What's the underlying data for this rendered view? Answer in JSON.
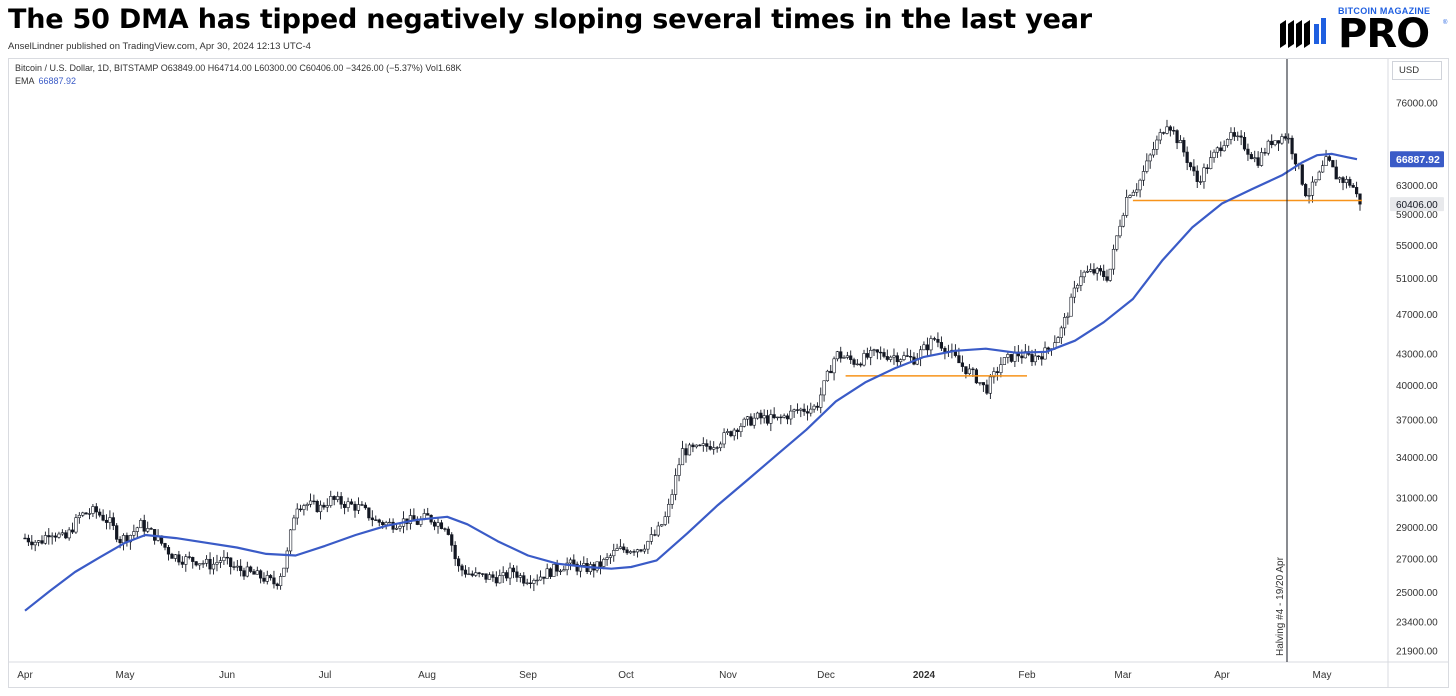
{
  "header": {
    "title": "The 50 DMA has tipped negatively sloping several times in the last year",
    "byline": "AnselLindner published on TradingView.com, Apr 30, 2024 12:13 UTC-4"
  },
  "logo": {
    "top_text": "BITCOIN MAGAZINE",
    "main_text": "PRO",
    "reg_mark": "®"
  },
  "legend": {
    "symbol_line": "Bitcoin / U.S. Dollar, 1D, BITSTAMP  O63849.00  H64714.00  L60300.00  C60406.00  −3426.00 (−5.37%)  Vol1.68K",
    "ema_label": "EMA",
    "ema_value": "66887.92"
  },
  "currency": "USD",
  "colors": {
    "ema_line": "#3a5bc7",
    "support_line": "#f7931a",
    "candle": "#131722",
    "halving_line": "#131722",
    "ema_badge_bg": "#3a5bc7",
    "price_badge_bg": "#e8e9ec"
  },
  "chart_data": {
    "type": "candlestick",
    "scale": "log",
    "ylim": [
      21000,
      80000
    ],
    "y_ticks": [
      "76000.00",
      "63000.00",
      "59000.00",
      "55000.00",
      "51000.00",
      "47000.00",
      "43000.00",
      "40000.00",
      "37000.00",
      "34000.00",
      "31000.00",
      "29000.00",
      "27000.00",
      "25000.00",
      "23400.00",
      "21900.00"
    ],
    "y_tick_values": [
      76000,
      63000,
      59000,
      55000,
      51000,
      47000,
      43000,
      40000,
      37000,
      34000,
      31000,
      29000,
      27000,
      25000,
      23400,
      21900
    ],
    "x_ticks": [
      {
        "label": "Apr",
        "month": 0,
        "bold": false
      },
      {
        "label": "May",
        "month": 1,
        "bold": false
      },
      {
        "label": "Jun",
        "month": 2,
        "bold": false
      },
      {
        "label": "Jul",
        "month": 3,
        "bold": false
      },
      {
        "label": "Aug",
        "month": 4,
        "bold": false
      },
      {
        "label": "Sep",
        "month": 5,
        "bold": false
      },
      {
        "label": "Oct",
        "month": 6,
        "bold": false
      },
      {
        "label": "Nov",
        "month": 7,
        "bold": false
      },
      {
        "label": "Dec",
        "month": 8,
        "bold": false
      },
      {
        "label": "2024",
        "month": 9,
        "bold": true
      },
      {
        "label": "Feb",
        "month": 10,
        "bold": false
      },
      {
        "label": "Mar",
        "month": 11,
        "bold": false
      },
      {
        "label": "Apr",
        "month": 12,
        "bold": false
      },
      {
        "label": "May",
        "month": 13,
        "bold": false
      }
    ],
    "price_path": [
      [
        0.0,
        28300
      ],
      [
        0.15,
        28000
      ],
      [
        0.25,
        28800
      ],
      [
        0.4,
        28200
      ],
      [
        0.55,
        29800
      ],
      [
        0.7,
        30100
      ],
      [
        0.85,
        29300
      ],
      [
        0.95,
        28200
      ],
      [
        1.05,
        28500
      ],
      [
        1.15,
        29200
      ],
      [
        1.3,
        28400
      ],
      [
        1.45,
        27300
      ],
      [
        1.55,
        27000
      ],
      [
        1.7,
        26900
      ],
      [
        1.85,
        26600
      ],
      [
        1.95,
        27000
      ],
      [
        2.05,
        26500
      ],
      [
        2.2,
        26200
      ],
      [
        2.35,
        25900
      ],
      [
        2.5,
        25500
      ],
      [
        2.6,
        26800
      ],
      [
        2.7,
        30500
      ],
      [
        2.8,
        30600
      ],
      [
        2.95,
        30300
      ],
      [
        3.05,
        30900
      ],
      [
        3.2,
        30600
      ],
      [
        3.35,
        30300
      ],
      [
        3.5,
        29400
      ],
      [
        3.65,
        29200
      ],
      [
        3.8,
        29500
      ],
      [
        3.9,
        29300
      ],
      [
        4.0,
        29700
      ],
      [
        4.1,
        29300
      ],
      [
        4.2,
        29100
      ],
      [
        4.3,
        26500
      ],
      [
        4.45,
        26000
      ],
      [
        4.6,
        25900
      ],
      [
        4.75,
        25850
      ],
      [
        4.85,
        26300
      ],
      [
        4.95,
        25800
      ],
      [
        5.1,
        25900
      ],
      [
        5.25,
        26300
      ],
      [
        5.4,
        26700
      ],
      [
        5.55,
        26400
      ],
      [
        5.7,
        26500
      ],
      [
        5.8,
        26900
      ],
      [
        5.9,
        27500
      ],
      [
        6.0,
        27600
      ],
      [
        6.15,
        27700
      ],
      [
        6.3,
        28600
      ],
      [
        6.4,
        29800
      ],
      [
        6.55,
        34500
      ],
      [
        6.7,
        34600
      ],
      [
        6.9,
        35200
      ],
      [
        7.1,
        36500
      ],
      [
        7.3,
        37200
      ],
      [
        7.5,
        37000
      ],
      [
        7.7,
        37800
      ],
      [
        7.9,
        38100
      ],
      [
        8.0,
        40500
      ],
      [
        8.1,
        43000
      ],
      [
        8.3,
        42200
      ],
      [
        8.5,
        43000
      ],
      [
        8.7,
        42800
      ],
      [
        8.9,
        42500
      ],
      [
        9.1,
        44500
      ],
      [
        9.2,
        43700
      ],
      [
        9.35,
        42000
      ],
      [
        9.5,
        40800
      ],
      [
        9.6,
        39600
      ],
      [
        9.75,
        42100
      ],
      [
        9.9,
        43000
      ],
      [
        10.05,
        42600
      ],
      [
        10.2,
        43200
      ],
      [
        10.35,
        45200
      ],
      [
        10.45,
        48000
      ],
      [
        10.55,
        51500
      ],
      [
        10.7,
        51800
      ],
      [
        10.85,
        51200
      ],
      [
        10.95,
        57000
      ],
      [
        11.05,
        62000
      ],
      [
        11.15,
        63000
      ],
      [
        11.3,
        68200
      ],
      [
        11.45,
        73000
      ],
      [
        11.6,
        68500
      ],
      [
        11.75,
        63600
      ],
      [
        11.9,
        67000
      ],
      [
        12.05,
        70500
      ],
      [
        12.2,
        69500
      ],
      [
        12.35,
        66500
      ],
      [
        12.5,
        69800
      ],
      [
        12.65,
        70700
      ],
      [
        12.75,
        66200
      ],
      [
        12.85,
        61500
      ],
      [
        12.95,
        63800
      ],
      [
        13.05,
        66800
      ],
      [
        13.15,
        64200
      ],
      [
        13.3,
        63200
      ],
      [
        13.38,
        60406
      ]
    ],
    "ema_path": [
      [
        0.0,
        24000
      ],
      [
        0.25,
        25100
      ],
      [
        0.5,
        26200
      ],
      [
        0.75,
        27100
      ],
      [
        1.0,
        28000
      ],
      [
        1.2,
        28500
      ],
      [
        1.5,
        28300
      ],
      [
        1.8,
        28000
      ],
      [
        2.1,
        27700
      ],
      [
        2.4,
        27300
      ],
      [
        2.7,
        27200
      ],
      [
        3.0,
        27800
      ],
      [
        3.3,
        28500
      ],
      [
        3.6,
        29100
      ],
      [
        3.9,
        29500
      ],
      [
        4.2,
        29700
      ],
      [
        4.4,
        29200
      ],
      [
        4.7,
        28100
      ],
      [
        5.0,
        27200
      ],
      [
        5.3,
        26700
      ],
      [
        5.6,
        26500
      ],
      [
        5.85,
        26400
      ],
      [
        6.05,
        26500
      ],
      [
        6.3,
        26900
      ],
      [
        6.6,
        28600
      ],
      [
        6.9,
        30500
      ],
      [
        7.2,
        32300
      ],
      [
        7.5,
        34200
      ],
      [
        7.8,
        36200
      ],
      [
        8.1,
        38600
      ],
      [
        8.4,
        40300
      ],
      [
        8.7,
        41600
      ],
      [
        9.0,
        42700
      ],
      [
        9.3,
        43300
      ],
      [
        9.6,
        43500
      ],
      [
        9.9,
        43100
      ],
      [
        10.2,
        43200
      ],
      [
        10.5,
        44300
      ],
      [
        10.8,
        46200
      ],
      [
        11.1,
        48700
      ],
      [
        11.4,
        53200
      ],
      [
        11.7,
        57300
      ],
      [
        12.0,
        60500
      ],
      [
        12.3,
        62500
      ],
      [
        12.6,
        64500
      ],
      [
        12.8,
        66400
      ],
      [
        12.95,
        67500
      ],
      [
        13.1,
        67700
      ],
      [
        13.25,
        67200
      ],
      [
        13.35,
        66887.92
      ]
    ],
    "support_lines": [
      {
        "x0": 8.2,
        "x1": 10.0,
        "y": 40900
      },
      {
        "x0": 11.1,
        "x1": 13.4,
        "y": 60900
      }
    ],
    "ema_badge": "66887.92",
    "price_badge": "60406.00",
    "price_badge_value": 60406,
    "ema_badge_value": 66887.92,
    "halving": {
      "month": 12.65,
      "label": "Halving #4 - 19/20 Apr"
    }
  }
}
